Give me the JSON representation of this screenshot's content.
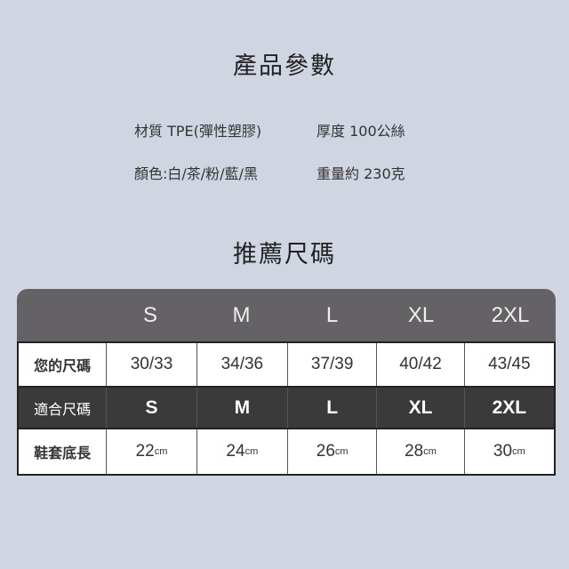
{
  "title": "產品參數",
  "specs": {
    "material": "材質  TPE(彈性塑膠)",
    "thickness": "厚度 100公絲",
    "colors": "顏色:白/茶/粉/藍/黑",
    "weight": "重量約 230克"
  },
  "size_title": "推薦尺碼",
  "table": {
    "headers": [
      "",
      "S",
      "M",
      "L",
      "XL",
      "2XL"
    ],
    "rows": [
      {
        "label": "您的尺碼",
        "cells": [
          "30/33",
          "34/36",
          "37/39",
          "40/42",
          "43/45"
        ]
      },
      {
        "label": "適合尺碼",
        "cells": [
          "S",
          "M",
          "L",
          "XL",
          "2XL"
        ]
      },
      {
        "label": "鞋套底長",
        "cells": [
          "22",
          "24",
          "26",
          "28",
          "30"
        ],
        "unit": "cm"
      }
    ]
  }
}
